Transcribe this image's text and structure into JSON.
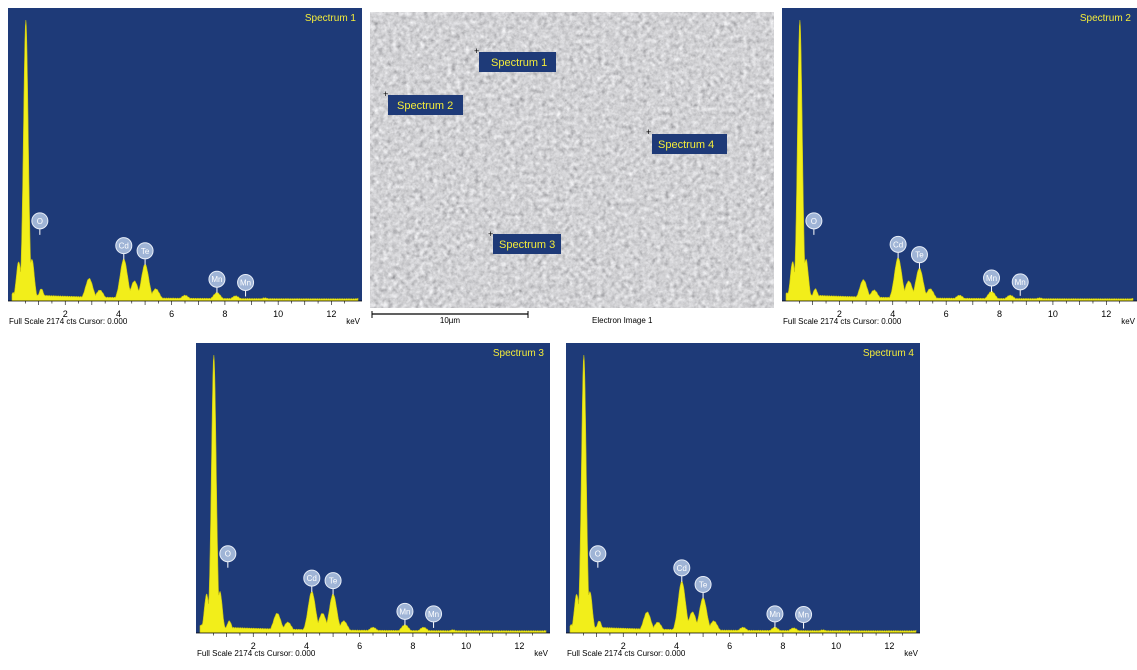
{
  "electron_image": {
    "title": "Electron Image 1",
    "scale_bar_label": "10µm",
    "markers": [
      {
        "label": "Spectrum 1"
      },
      {
        "label": "Spectrum 2"
      },
      {
        "label": "Spectrum 3"
      },
      {
        "label": "Spectrum 4"
      }
    ]
  },
  "colors": {
    "plot_background": "#1e3a78",
    "spectrum_fill": "#f2ee1a",
    "label_text": "#f4ec3a",
    "peak_marker": "#9fb4d6"
  },
  "chart_data": [
    {
      "type": "area",
      "title": "Spectrum 1",
      "footer": "Full Scale 2174 cts Cursor: 0.000",
      "xlabel": "keV",
      "xlim": [
        0,
        13
      ],
      "ylim": [
        0,
        2174
      ],
      "xticks": [
        2,
        4,
        6,
        8,
        10,
        12
      ],
      "peaks": [
        {
          "element": "O",
          "x": 0.52,
          "y": 2174
        },
        {
          "element": "Cd",
          "x": 4.2,
          "y": 320
        },
        {
          "element": "Te",
          "x": 5.0,
          "y": 280
        },
        {
          "element": "Mn",
          "x": 7.7,
          "y": 60
        },
        {
          "element": "Mn",
          "x": 8.4,
          "y": 35
        }
      ],
      "series": [
        {
          "x": [
            0.05,
            0.25,
            0.52,
            0.75,
            1.1,
            2.9,
            3.3,
            4.2,
            4.6,
            5.0,
            5.4,
            6.5,
            7.7,
            8.4,
            9.5,
            13
          ],
          "y": [
            60,
            300,
            2174,
            320,
            90,
            170,
            80,
            320,
            150,
            280,
            90,
            40,
            60,
            35,
            20,
            15
          ]
        }
      ]
    },
    {
      "type": "area",
      "title": "Spectrum 2",
      "footer": "Full Scale 2174 cts Cursor: 0.000",
      "xlabel": "keV",
      "xlim": [
        0,
        13
      ],
      "ylim": [
        0,
        2174
      ],
      "xticks": [
        2,
        4,
        6,
        8,
        10,
        12
      ],
      "peaks": [
        {
          "element": "O",
          "x": 0.52,
          "y": 2174
        },
        {
          "element": "Cd",
          "x": 4.2,
          "y": 330
        },
        {
          "element": "Te",
          "x": 5.0,
          "y": 250
        },
        {
          "element": "Mn",
          "x": 7.7,
          "y": 70
        },
        {
          "element": "Mn",
          "x": 8.4,
          "y": 40
        }
      ],
      "series": [
        {
          "x": [
            0.05,
            0.25,
            0.52,
            0.75,
            1.1,
            2.9,
            3.3,
            4.2,
            4.6,
            5.0,
            5.4,
            6.5,
            7.7,
            8.4,
            9.5,
            13
          ],
          "y": [
            60,
            300,
            2174,
            320,
            90,
            160,
            80,
            330,
            150,
            250,
            90,
            40,
            70,
            40,
            20,
            15
          ]
        }
      ]
    },
    {
      "type": "area",
      "title": "Spectrum 3",
      "footer": "Full Scale 2174 cts Cursor: 0.000",
      "xlabel": "keV",
      "xlim": [
        0,
        13
      ],
      "ylim": [
        0,
        2174
      ],
      "xticks": [
        2,
        4,
        6,
        8,
        10,
        12
      ],
      "peaks": [
        {
          "element": "O",
          "x": 0.52,
          "y": 2174
        },
        {
          "element": "Cd",
          "x": 4.2,
          "y": 320
        },
        {
          "element": "Te",
          "x": 5.0,
          "y": 300
        },
        {
          "element": "Mn",
          "x": 7.7,
          "y": 60
        },
        {
          "element": "Mn",
          "x": 8.4,
          "y": 40
        }
      ],
      "series": [
        {
          "x": [
            0.05,
            0.25,
            0.52,
            0.75,
            1.1,
            2.9,
            3.3,
            4.2,
            4.6,
            5.0,
            5.4,
            6.5,
            7.7,
            8.4,
            9.5,
            13
          ],
          "y": [
            60,
            300,
            2174,
            320,
            90,
            150,
            80,
            320,
            150,
            300,
            90,
            40,
            60,
            40,
            20,
            15
          ]
        }
      ]
    },
    {
      "type": "area",
      "title": "Spectrum 4",
      "footer": "Full Scale 2174 cts Cursor: 0.000",
      "xlabel": "keV",
      "xlim": [
        0,
        13
      ],
      "ylim": [
        0,
        2174
      ],
      "xticks": [
        2,
        4,
        6,
        8,
        10,
        12
      ],
      "peaks": [
        {
          "element": "O",
          "x": 0.52,
          "y": 2174
        },
        {
          "element": "Cd",
          "x": 4.2,
          "y": 400
        },
        {
          "element": "Te",
          "x": 5.0,
          "y": 270
        },
        {
          "element": "Mn",
          "x": 7.7,
          "y": 40
        },
        {
          "element": "Mn",
          "x": 8.4,
          "y": 35
        }
      ],
      "series": [
        {
          "x": [
            0.05,
            0.25,
            0.52,
            0.75,
            1.1,
            2.9,
            3.3,
            4.2,
            4.6,
            5.0,
            5.4,
            6.5,
            7.7,
            8.4,
            9.5,
            13
          ],
          "y": [
            60,
            300,
            2174,
            320,
            90,
            160,
            80,
            400,
            160,
            270,
            90,
            40,
            40,
            35,
            20,
            15
          ]
        }
      ]
    }
  ]
}
